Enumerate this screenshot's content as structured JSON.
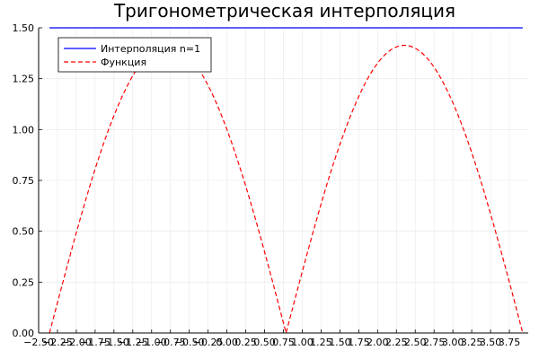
{
  "chart_data": {
    "type": "line",
    "title": "Тригонометрическая интерполяция",
    "xlabel": "",
    "ylabel": "",
    "xlim": [
      -2.5,
      4.0
    ],
    "ylim": [
      0.0,
      1.5
    ],
    "x_ticks": [
      -2.5,
      -2.25,
      -2.0,
      -1.75,
      -1.5,
      -1.25,
      -1.0,
      -0.75,
      -0.5,
      -0.25,
      0.0,
      0.25,
      0.5,
      0.75,
      1.0,
      1.25,
      1.5,
      1.75,
      2.0,
      2.25,
      2.5,
      2.75,
      3.0,
      3.25,
      3.5,
      3.75
    ],
    "x_tick_labels": [
      "−2.50",
      "−2.25",
      "−2.00",
      "−1.75",
      "−1.50",
      "−1.25",
      "−1.00",
      "−0.75",
      "−0.50",
      "−0.25",
      "0.00",
      "0.25",
      "0.50",
      "0.75",
      "1.00",
      "1.25",
      "1.50",
      "1.75",
      "2.00",
      "2.25",
      "2.50",
      "2.75",
      "3.00",
      "3.25",
      "3.50",
      "3.75"
    ],
    "y_ticks": [
      0.0,
      0.25,
      0.5,
      0.75,
      1.0,
      1.25,
      1.5
    ],
    "y_tick_labels": [
      "0.00",
      "0.25",
      "0.50",
      "0.75",
      "1.00",
      "1.25",
      "1.50"
    ],
    "grid": true,
    "legend_position": "top-left",
    "series": [
      {
        "name": "Интерполяция n=1",
        "color": "#0000ff",
        "style": "solid",
        "x": [
          -2.356,
          3.927
        ],
        "y": [
          1.5,
          1.5
        ]
      },
      {
        "name": "Функция",
        "color": "#ff0000",
        "style": "dashed",
        "x": [
          -2.356,
          -2.159,
          -1.963,
          -1.767,
          -1.571,
          -1.374,
          -1.178,
          -0.982,
          -0.785,
          -0.589,
          -0.393,
          -0.196,
          0.0,
          0.196,
          0.393,
          0.589,
          0.785,
          0.982,
          1.178,
          1.374,
          1.571,
          1.767,
          1.963,
          2.159,
          2.356,
          2.553,
          2.749,
          2.945,
          3.142,
          3.338,
          3.534,
          3.731,
          3.927
        ],
        "y": [
          0.0,
          0.276,
          0.541,
          0.786,
          1.0,
          1.176,
          1.307,
          1.387,
          1.414,
          1.387,
          1.307,
          1.176,
          1.0,
          0.786,
          0.541,
          0.276,
          0.0,
          0.276,
          0.541,
          0.786,
          1.0,
          1.176,
          1.307,
          1.387,
          1.414,
          1.387,
          1.307,
          1.176,
          1.0,
          0.786,
          0.541,
          0.276,
          0.0
        ]
      }
    ]
  }
}
